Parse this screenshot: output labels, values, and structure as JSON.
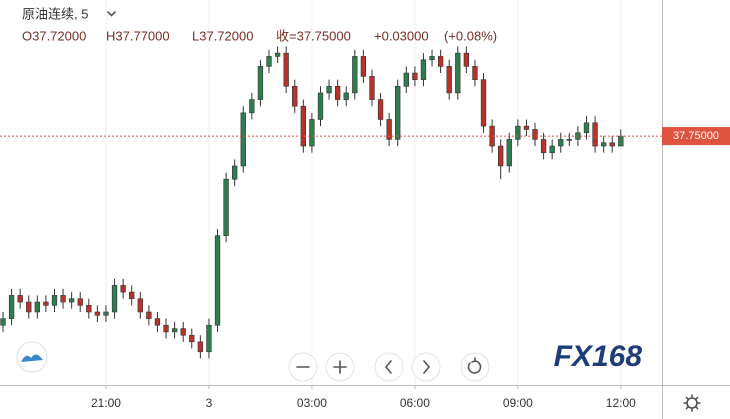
{
  "chart_data": {
    "type": "candlestick",
    "title": "原油连续, 5",
    "legend_values": {
      "open": 37.72,
      "high": 37.77,
      "low": 37.72,
      "close": 37.75,
      "change": 0.03,
      "change_pct": 0.08
    },
    "legend_labels": {
      "open": "O37.72000",
      "high": "H37.77000",
      "low": "L37.72000",
      "close": "收=37.75000",
      "change": "+0.03000",
      "change_pct": "(+0.08%)"
    },
    "last_price": 37.75,
    "last_price_label": "37.75000",
    "watermark": "FX168",
    "up_color": "#2f7d4f",
    "down_color": "#b8322a",
    "last_price_color": "#e0533f",
    "grid": true,
    "xlim": [
      -0.35,
      76.8
    ],
    "ylim": [
      37.0,
      38.16
    ],
    "xticks": [
      {
        "value": 12,
        "label": "21:00"
      },
      {
        "value": 24,
        "label": "3"
      },
      {
        "value": 36,
        "label": "03:00"
      },
      {
        "value": 48,
        "label": "06:00"
      },
      {
        "value": 60,
        "label": "09:00"
      },
      {
        "value": 72,
        "label": "12:00"
      }
    ],
    "open": [
      37.18,
      37.2,
      37.27,
      37.25,
      37.22,
      37.25,
      37.24,
      37.27,
      37.25,
      37.26,
      37.24,
      37.22,
      37.21,
      37.22,
      37.3,
      37.28,
      37.26,
      37.22,
      37.2,
      37.18,
      37.16,
      37.17,
      37.15,
      37.13,
      37.1,
      37.18,
      37.45,
      37.62,
      37.66,
      37.82,
      37.86,
      37.96,
      37.99,
      38.0,
      37.9,
      37.84,
      37.72,
      37.8,
      37.88,
      37.9,
      37.86,
      37.88,
      37.99,
      37.93,
      37.86,
      37.8,
      37.74,
      37.9,
      37.94,
      37.92,
      37.98,
      37.99,
      37.96,
      37.88,
      38.0,
      37.96,
      37.92,
      37.78,
      37.72,
      37.66,
      37.74,
      37.78,
      37.77,
      37.74,
      37.7,
      37.72,
      37.74,
      37.74,
      37.76,
      37.79,
      37.72,
      37.73,
      37.72
    ],
    "high": [
      37.22,
      37.29,
      37.29,
      37.27,
      37.27,
      37.27,
      37.29,
      37.29,
      37.28,
      37.28,
      37.26,
      37.24,
      37.24,
      37.32,
      37.32,
      37.3,
      37.28,
      37.24,
      37.22,
      37.2,
      37.19,
      37.19,
      37.17,
      37.15,
      37.2,
      37.47,
      37.64,
      37.68,
      37.84,
      37.88,
      37.98,
      38.01,
      38.02,
      38.02,
      37.92,
      37.86,
      37.82,
      37.9,
      37.92,
      37.92,
      37.9,
      38.01,
      38.01,
      37.95,
      37.88,
      37.82,
      37.92,
      37.96,
      37.96,
      38.0,
      38.01,
      38.01,
      37.98,
      38.02,
      38.02,
      37.98,
      37.94,
      37.8,
      37.74,
      37.76,
      37.8,
      37.8,
      37.79,
      37.76,
      37.74,
      37.76,
      37.76,
      37.78,
      37.81,
      37.81,
      37.75,
      37.75,
      37.77
    ],
    "low": [
      37.16,
      37.18,
      37.23,
      37.2,
      37.2,
      37.22,
      37.22,
      37.23,
      37.23,
      37.22,
      37.2,
      37.19,
      37.19,
      37.2,
      37.26,
      37.24,
      37.2,
      37.18,
      37.16,
      37.14,
      37.14,
      37.13,
      37.11,
      37.08,
      37.08,
      37.16,
      37.43,
      37.6,
      37.64,
      37.8,
      37.84,
      37.94,
      37.97,
      37.88,
      37.82,
      37.7,
      37.7,
      37.78,
      37.86,
      37.84,
      37.84,
      37.86,
      37.91,
      37.84,
      37.78,
      37.72,
      37.72,
      37.88,
      37.9,
      37.9,
      37.96,
      37.94,
      37.86,
      37.86,
      37.94,
      37.9,
      37.76,
      37.7,
      37.62,
      37.64,
      37.72,
      37.75,
      37.72,
      37.68,
      37.68,
      37.7,
      37.72,
      37.72,
      37.74,
      37.7,
      37.7,
      37.7,
      37.72
    ],
    "close": [
      37.2,
      37.27,
      37.25,
      37.22,
      37.25,
      37.24,
      37.27,
      37.25,
      37.26,
      37.24,
      37.22,
      37.21,
      37.22,
      37.3,
      37.28,
      37.26,
      37.22,
      37.2,
      37.18,
      37.16,
      37.17,
      37.15,
      37.13,
      37.1,
      37.18,
      37.45,
      37.62,
      37.66,
      37.82,
      37.86,
      37.96,
      37.99,
      38.0,
      37.9,
      37.84,
      37.72,
      37.8,
      37.88,
      37.9,
      37.86,
      37.88,
      37.99,
      37.93,
      37.86,
      37.8,
      37.74,
      37.9,
      37.94,
      37.92,
      37.98,
      37.99,
      37.96,
      37.88,
      38.0,
      37.96,
      37.92,
      37.78,
      37.72,
      37.66,
      37.74,
      37.78,
      37.77,
      37.74,
      37.7,
      37.72,
      37.74,
      37.74,
      37.76,
      37.79,
      37.72,
      37.73,
      37.72,
      37.75
    ]
  }
}
